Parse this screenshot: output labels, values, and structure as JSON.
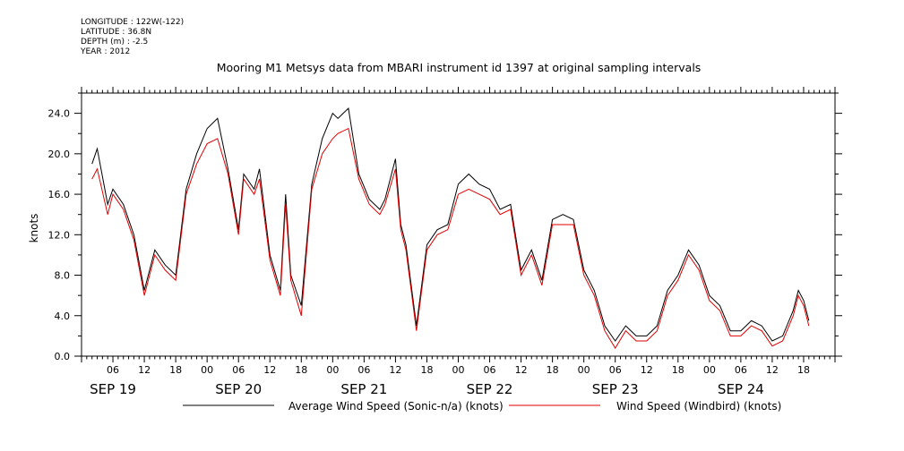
{
  "metadata": [
    {
      "label": "LONGITUDE : 122W(-122)"
    },
    {
      "label": "LATITUDE : 36.8N"
    },
    {
      "label": "DEPTH (m) : -2.5"
    },
    {
      "label": "YEAR : 2012"
    }
  ],
  "chart_data": {
    "type": "line",
    "title": "Mooring M1 Metsys data from MBARI instrument id 1397 at original sampling intervals",
    "ylabel": "knots",
    "xlabel": "",
    "ylim": [
      0,
      26
    ],
    "xlim_hours": [
      0,
      144
    ],
    "y_ticks": [
      "0.0",
      "4.0",
      "8.0",
      "12.0",
      "16.0",
      "20.0",
      "24.0"
    ],
    "x_hour_ticks": [
      "06",
      "12",
      "18",
      "00",
      "06",
      "12",
      "18",
      "00",
      "06",
      "12",
      "18",
      "00",
      "06",
      "12",
      "18",
      "00",
      "06",
      "12",
      "18",
      "00",
      "06",
      "12",
      "18"
    ],
    "date_labels": [
      "SEP 19",
      "SEP 20",
      "SEP 21",
      "SEP 22",
      "SEP 23",
      "SEP 24"
    ],
    "legend_placement": "bottom",
    "series": [
      {
        "name": "Average Wind Speed (Sonic-n/a) (knots)",
        "color": "#000000",
        "x_date": [
          "Sep 19 02:00",
          "Sep 19 03:00",
          "Sep 19 05:00",
          "Sep 19 06:00",
          "Sep 19 08:00",
          "Sep 19 10:00",
          "Sep 19 12:00",
          "Sep 19 14:00",
          "Sep 19 16:00",
          "Sep 19 18:00",
          "Sep 19 20:00",
          "Sep 19 22:00",
          "Sep 20 00:00",
          "Sep 20 02:00",
          "Sep 20 04:00",
          "Sep 20 06:00",
          "Sep 20 07:00",
          "Sep 20 09:00",
          "Sep 20 10:00",
          "Sep 20 12:00",
          "Sep 20 14:00",
          "Sep 20 15:00",
          "Sep 20 16:00",
          "Sep 20 18:00",
          "Sep 20 20:00",
          "Sep 20 22:00",
          "Sep 21 00:00",
          "Sep 21 01:00",
          "Sep 21 03:00",
          "Sep 21 05:00",
          "Sep 21 07:00",
          "Sep 21 09:00",
          "Sep 21 10:00",
          "Sep 21 12:00",
          "Sep 21 13:00",
          "Sep 21 14:00",
          "Sep 21 16:00",
          "Sep 21 18:00",
          "Sep 21 20:00",
          "Sep 21 22:00",
          "Sep 22 00:00",
          "Sep 22 02:00",
          "Sep 22 04:00",
          "Sep 22 06:00",
          "Sep 22 08:00",
          "Sep 22 10:00",
          "Sep 22 12:00",
          "Sep 22 14:00",
          "Sep 22 16:00",
          "Sep 22 18:00",
          "Sep 22 20:00",
          "Sep 22 22:00",
          "Sep 23 00:00",
          "Sep 23 02:00",
          "Sep 23 04:00",
          "Sep 23 06:00",
          "Sep 23 08:00",
          "Sep 23 10:00",
          "Sep 23 12:00",
          "Sep 23 14:00",
          "Sep 23 16:00",
          "Sep 23 18:00",
          "Sep 23 20:00",
          "Sep 23 22:00",
          "Sep 24 00:00",
          "Sep 24 02:00",
          "Sep 24 04:00",
          "Sep 24 06:00",
          "Sep 24 08:00",
          "Sep 24 10:00",
          "Sep 24 12:00",
          "Sep 24 14:00",
          "Sep 24 16:00",
          "Sep 24 17:00",
          "Sep 24 18:00",
          "Sep 24 19:00"
        ],
        "values": [
          19.0,
          20.5,
          15.0,
          16.5,
          15.0,
          12.0,
          6.5,
          10.5,
          9.0,
          8.0,
          16.5,
          20.0,
          22.5,
          23.5,
          18.5,
          12.5,
          18.0,
          16.5,
          18.5,
          10.0,
          6.5,
          16.0,
          8.0,
          5.0,
          17.0,
          21.5,
          24.0,
          23.5,
          24.5,
          18.0,
          15.5,
          14.5,
          15.5,
          19.5,
          13.0,
          11.0,
          3.0,
          11.0,
          12.5,
          13.0,
          17.0,
          18.0,
          17.0,
          16.5,
          14.5,
          15.0,
          8.5,
          10.5,
          7.5,
          13.5,
          14.0,
          13.5,
          8.5,
          6.5,
          3.0,
          1.5,
          3.0,
          2.0,
          2.0,
          3.0,
          6.5,
          8.0,
          10.5,
          9.0,
          6.0,
          5.0,
          2.5,
          2.5,
          3.5,
          3.0,
          1.5,
          2.0,
          4.5,
          6.5,
          5.5,
          3.5
        ]
      },
      {
        "name": "Wind Speed (Windbird) (knots)",
        "color": "#e00000",
        "x_date": [
          "Sep 19 02:00",
          "Sep 19 03:00",
          "Sep 19 05:00",
          "Sep 19 06:00",
          "Sep 19 08:00",
          "Sep 19 10:00",
          "Sep 19 12:00",
          "Sep 19 14:00",
          "Sep 19 16:00",
          "Sep 19 18:00",
          "Sep 19 20:00",
          "Sep 19 22:00",
          "Sep 20 00:00",
          "Sep 20 02:00",
          "Sep 20 04:00",
          "Sep 20 06:00",
          "Sep 20 07:00",
          "Sep 20 09:00",
          "Sep 20 10:00",
          "Sep 20 12:00",
          "Sep 20 14:00",
          "Sep 20 15:00",
          "Sep 20 16:00",
          "Sep 20 18:00",
          "Sep 20 20:00",
          "Sep 20 22:00",
          "Sep 21 00:00",
          "Sep 21 01:00",
          "Sep 21 03:00",
          "Sep 21 05:00",
          "Sep 21 07:00",
          "Sep 21 09:00",
          "Sep 21 10:00",
          "Sep 21 12:00",
          "Sep 21 13:00",
          "Sep 21 14:00",
          "Sep 21 16:00",
          "Sep 21 18:00",
          "Sep 21 20:00",
          "Sep 21 22:00",
          "Sep 22 00:00",
          "Sep 22 02:00",
          "Sep 22 04:00",
          "Sep 22 06:00",
          "Sep 22 08:00",
          "Sep 22 10:00",
          "Sep 22 12:00",
          "Sep 22 14:00",
          "Sep 22 16:00",
          "Sep 22 18:00",
          "Sep 22 20:00",
          "Sep 22 22:00",
          "Sep 23 00:00",
          "Sep 23 02:00",
          "Sep 23 04:00",
          "Sep 23 06:00",
          "Sep 23 08:00",
          "Sep 23 10:00",
          "Sep 23 12:00",
          "Sep 23 14:00",
          "Sep 23 16:00",
          "Sep 23 18:00",
          "Sep 23 20:00",
          "Sep 23 22:00",
          "Sep 24 00:00",
          "Sep 24 02:00",
          "Sep 24 04:00",
          "Sep 24 06:00",
          "Sep 24 08:00",
          "Sep 24 10:00",
          "Sep 24 12:00",
          "Sep 24 14:00",
          "Sep 24 16:00",
          "Sep 24 17:00",
          "Sep 24 18:00",
          "Sep 24 19:00"
        ],
        "values": [
          17.5,
          18.5,
          14.0,
          16.0,
          14.5,
          11.5,
          6.0,
          10.0,
          8.5,
          7.5,
          16.0,
          19.0,
          21.0,
          21.5,
          18.0,
          12.0,
          17.5,
          16.0,
          17.5,
          9.5,
          6.0,
          15.0,
          7.5,
          4.0,
          16.5,
          20.0,
          21.5,
          22.0,
          22.5,
          17.5,
          15.0,
          14.0,
          15.0,
          18.5,
          12.5,
          10.5,
          2.5,
          10.5,
          12.0,
          12.5,
          16.0,
          16.5,
          16.0,
          15.5,
          14.0,
          14.5,
          8.0,
          10.0,
          7.0,
          13.0,
          13.0,
          13.0,
          8.0,
          6.0,
          2.5,
          0.8,
          2.5,
          1.5,
          1.5,
          2.5,
          6.0,
          7.5,
          10.0,
          8.5,
          5.5,
          4.5,
          2.0,
          2.0,
          3.0,
          2.5,
          1.0,
          1.5,
          4.0,
          6.0,
          5.0,
          3.0
        ]
      }
    ]
  }
}
